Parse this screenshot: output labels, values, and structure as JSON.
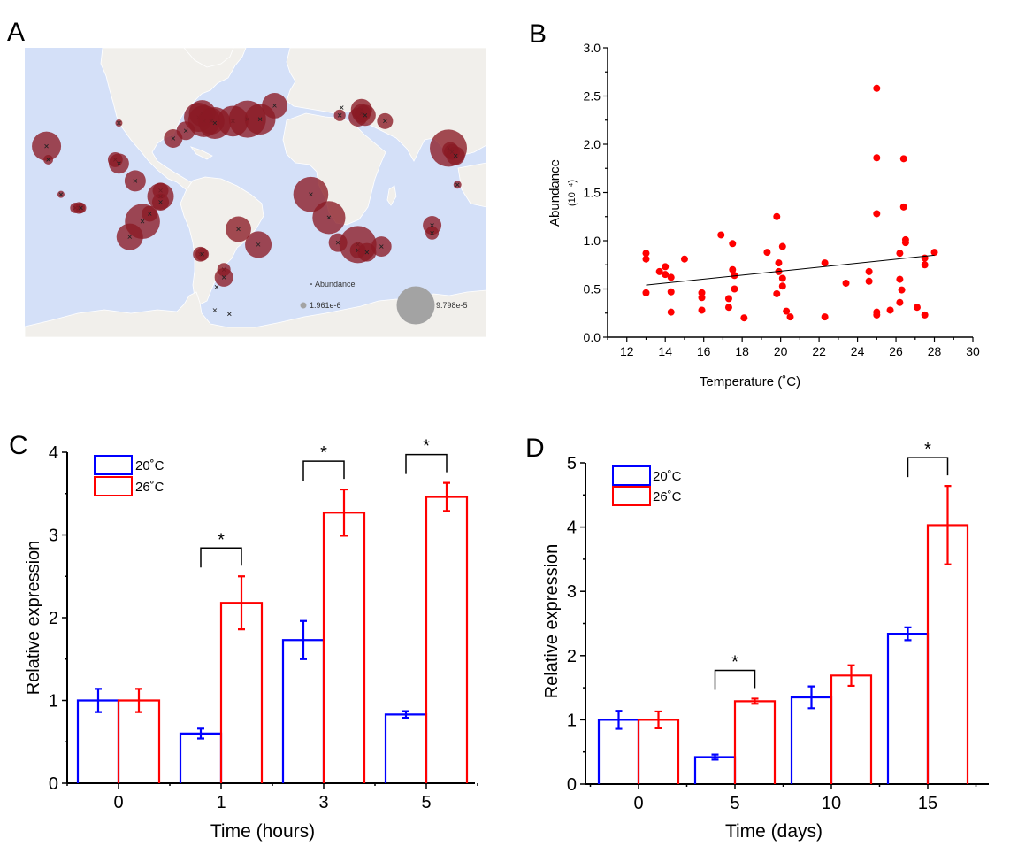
{
  "panels": {
    "a": {
      "letter": "A"
    },
    "b": {
      "letter": "B"
    },
    "c": {
      "letter": "C"
    },
    "d": {
      "letter": "D"
    }
  },
  "colors": {
    "ocean": "#d4e0f8",
    "land": "#f1efeb",
    "border": "#ffffff",
    "bubble": "#8b1a24",
    "legend_bubble": "#a3a3a3",
    "scatter": "#ff0000",
    "series_20": "#0000ff",
    "series_26": "#ff0000",
    "axis": "#000000"
  },
  "chart_data": [
    {
      "id": "A",
      "type": "bubble-map",
      "title": "",
      "legend": {
        "title": "Abundance",
        "min_label": "1.961e-6",
        "max_label": "9.798e-5",
        "min_value": 1.961e-06,
        "max_value": 9.798e-05
      },
      "points": [
        {
          "lon": -158,
          "lat": 21,
          "size": 0.55
        },
        {
          "lon": -157,
          "lat": 14,
          "size": 0.18
        },
        {
          "lon": -118,
          "lat": 33,
          "size": 0.08
        },
        {
          "lon": -120,
          "lat": 14,
          "size": 0.28
        },
        {
          "lon": -118,
          "lat": 12,
          "size": 0.38
        },
        {
          "lon": -109,
          "lat": 3,
          "size": 0.4
        },
        {
          "lon": -150,
          "lat": -4,
          "size": 0.12
        },
        {
          "lon": -142,
          "lat": -11,
          "size": 0.2
        },
        {
          "lon": -140,
          "lat": -11,
          "size": 0.22
        },
        {
          "lon": -139,
          "lat": -11,
          "size": 0.2
        },
        {
          "lon": -95,
          "lat": -2,
          "size": 0.3
        },
        {
          "lon": -95,
          "lat": -5,
          "size": 0.5
        },
        {
          "lon": -95,
          "lat": -8,
          "size": 0.32
        },
        {
          "lon": -105,
          "lat": -18,
          "size": 0.66
        },
        {
          "lon": -101,
          "lat": -14,
          "size": 0.3
        },
        {
          "lon": -112,
          "lat": -26,
          "size": 0.5
        },
        {
          "lon": -73,
          "lat": -35,
          "size": 0.28
        },
        {
          "lon": -72,
          "lat": -35,
          "size": 0.25
        },
        {
          "lon": -60,
          "lat": -43,
          "size": 0.25
        },
        {
          "lon": -60,
          "lat": -47,
          "size": 0.35
        },
        {
          "lon": -64,
          "lat": -52,
          "size": 0
        },
        {
          "lon": -65,
          "lat": -64,
          "size": 0
        },
        {
          "lon": -57,
          "lat": -66,
          "size": 0
        },
        {
          "lon": -52,
          "lat": -22,
          "size": 0.48
        },
        {
          "lon": -41,
          "lat": -30,
          "size": 0.5
        },
        {
          "lon": -88,
          "lat": 25,
          "size": 0.35
        },
        {
          "lon": -81,
          "lat": 29,
          "size": 0.35
        },
        {
          "lon": -74,
          "lat": 36,
          "size": 0.55
        },
        {
          "lon": -72,
          "lat": 38,
          "size": 0.5
        },
        {
          "lon": -71,
          "lat": 34,
          "size": 0.6
        },
        {
          "lon": -67,
          "lat": 34,
          "size": 0.5
        },
        {
          "lon": -65,
          "lat": 33,
          "size": 0.6
        },
        {
          "lon": -55,
          "lat": 34,
          "size": 0.58
        },
        {
          "lon": -47,
          "lat": 35,
          "size": 0.7
        },
        {
          "lon": -40,
          "lat": 35,
          "size": 0.58
        },
        {
          "lon": -32,
          "lat": 42,
          "size": 0.48
        },
        {
          "lon": 5,
          "lat": 41,
          "size": 0
        },
        {
          "lon": 4,
          "lat": 37,
          "size": 0.22
        },
        {
          "lon": 14,
          "lat": 36,
          "size": 0.35
        },
        {
          "lon": 16,
          "lat": 40,
          "size": 0.4
        },
        {
          "lon": 16,
          "lat": 38,
          "size": 0.35
        },
        {
          "lon": 18,
          "lat": 37,
          "size": 0.4
        },
        {
          "lon": 29,
          "lat": 34,
          "size": 0.3
        },
        {
          "lon": 64,
          "lat": 20,
          "size": 0.7
        },
        {
          "lon": 65,
          "lat": 19,
          "size": 0.3
        },
        {
          "lon": 66,
          "lat": 18,
          "size": 0.3
        },
        {
          "lon": 68,
          "lat": 16,
          "size": 0.35
        },
        {
          "lon": 69,
          "lat": 1,
          "size": 0.15
        },
        {
          "lon": -12,
          "lat": -4,
          "size": 0.66
        },
        {
          "lon": -2,
          "lat": -16,
          "size": 0.62
        },
        {
          "lon": 3,
          "lat": -29,
          "size": 0.35
        },
        {
          "lon": 14,
          "lat": -30,
          "size": 0.7
        },
        {
          "lon": 14,
          "lat": -33,
          "size": 0.3
        },
        {
          "lon": 19,
          "lat": -34,
          "size": 0.35
        },
        {
          "lon": 27,
          "lat": -31,
          "size": 0.38
        },
        {
          "lon": 55,
          "lat": -20,
          "size": 0.35
        },
        {
          "lon": 55,
          "lat": -24,
          "size": 0.25
        }
      ]
    },
    {
      "id": "B",
      "type": "scatter",
      "title": "",
      "xlabel": "Temperature (˚C)",
      "ylabel": "Abundance",
      "ylabel_unit": "(10⁻⁴)",
      "xlim": [
        11,
        30
      ],
      "ylim": [
        0,
        3.0
      ],
      "xticks": [
        12,
        14,
        16,
        18,
        20,
        22,
        24,
        26,
        28,
        30
      ],
      "yticks": [
        "0.0",
        "0.5",
        "1.0",
        "1.5",
        "2.0",
        "2.5",
        "3.0"
      ],
      "grid": false,
      "points": [
        [
          13.0,
          0.87
        ],
        [
          13.0,
          0.81
        ],
        [
          13.0,
          0.46
        ],
        [
          13.7,
          0.68
        ],
        [
          14.0,
          0.73
        ],
        [
          14.0,
          0.65
        ],
        [
          14.3,
          0.62
        ],
        [
          14.3,
          0.47
        ],
        [
          14.3,
          0.26
        ],
        [
          15.0,
          0.81
        ],
        [
          15.9,
          0.46
        ],
        [
          15.9,
          0.41
        ],
        [
          15.9,
          0.28
        ],
        [
          16.9,
          1.06
        ],
        [
          17.3,
          0.4
        ],
        [
          17.3,
          0.31
        ],
        [
          17.5,
          0.97
        ],
        [
          17.5,
          0.7
        ],
        [
          17.6,
          0.64
        ],
        [
          17.6,
          0.5
        ],
        [
          18.1,
          0.2
        ],
        [
          19.3,
          0.88
        ],
        [
          19.8,
          1.25
        ],
        [
          19.8,
          0.45
        ],
        [
          19.9,
          0.77
        ],
        [
          19.9,
          0.68
        ],
        [
          20.1,
          0.94
        ],
        [
          20.1,
          0.61
        ],
        [
          20.1,
          0.53
        ],
        [
          20.3,
          0.27
        ],
        [
          20.5,
          0.21
        ],
        [
          22.3,
          0.21
        ],
        [
          22.3,
          0.77
        ],
        [
          23.4,
          0.56
        ],
        [
          24.6,
          0.68
        ],
        [
          24.6,
          0.58
        ],
        [
          25.0,
          2.58
        ],
        [
          25.0,
          1.86
        ],
        [
          25.0,
          1.28
        ],
        [
          25.0,
          0.26
        ],
        [
          25.0,
          0.23
        ],
        [
          25.7,
          0.28
        ],
        [
          26.2,
          0.87
        ],
        [
          26.2,
          0.6
        ],
        [
          26.2,
          0.36
        ],
        [
          26.3,
          0.49
        ],
        [
          26.4,
          1.85
        ],
        [
          26.4,
          1.35
        ],
        [
          26.5,
          1.01
        ],
        [
          26.5,
          0.98
        ],
        [
          27.1,
          0.31
        ],
        [
          27.5,
          0.82
        ],
        [
          27.5,
          0.75
        ],
        [
          27.5,
          0.23
        ],
        [
          28.0,
          0.88
        ]
      ],
      "trendline": {
        "x": [
          13,
          28
        ],
        "y": [
          0.54,
          0.85
        ]
      }
    },
    {
      "id": "C",
      "type": "bar",
      "title": "",
      "xlabel": "Time (hours)",
      "ylabel": "Relative expression",
      "categories": [
        "0",
        "1",
        "3",
        "5"
      ],
      "ylim": [
        0,
        4
      ],
      "yticks": [
        "0",
        "1",
        "2",
        "3",
        "4"
      ],
      "legend": {
        "position": "top-left",
        "entries": [
          "20˚C",
          "26˚C"
        ]
      },
      "series": [
        {
          "name": "20˚C",
          "values": [
            1.0,
            0.6,
            1.73,
            0.83
          ],
          "errors": [
            0.14,
            0.06,
            0.23,
            0.04
          ]
        },
        {
          "name": "26˚C",
          "values": [
            1.0,
            2.18,
            3.27,
            3.46
          ],
          "errors": [
            0.14,
            0.32,
            0.28,
            0.17
          ]
        }
      ],
      "significance": [
        {
          "category": "1",
          "label": "*"
        },
        {
          "category": "3",
          "label": "*"
        },
        {
          "category": "5",
          "label": "*"
        }
      ]
    },
    {
      "id": "D",
      "type": "bar",
      "title": "",
      "xlabel": "Time (days)",
      "ylabel": "Relative expression",
      "categories": [
        "0",
        "5",
        "10",
        "15"
      ],
      "ylim": [
        0,
        5
      ],
      "yticks": [
        "0",
        "1",
        "2",
        "3",
        "4",
        "5"
      ],
      "legend": {
        "position": "top-left",
        "entries": [
          "20˚C",
          "26˚C"
        ]
      },
      "series": [
        {
          "name": "20˚C",
          "values": [
            1.0,
            0.42,
            1.35,
            2.34
          ],
          "errors": [
            0.14,
            0.04,
            0.17,
            0.1
          ]
        },
        {
          "name": "26˚C",
          "values": [
            1.0,
            1.29,
            1.69,
            4.03
          ],
          "errors": [
            0.13,
            0.04,
            0.16,
            0.61
          ]
        }
      ],
      "significance": [
        {
          "category": "5",
          "label": "*"
        },
        {
          "category": "15",
          "label": "*"
        }
      ]
    }
  ]
}
